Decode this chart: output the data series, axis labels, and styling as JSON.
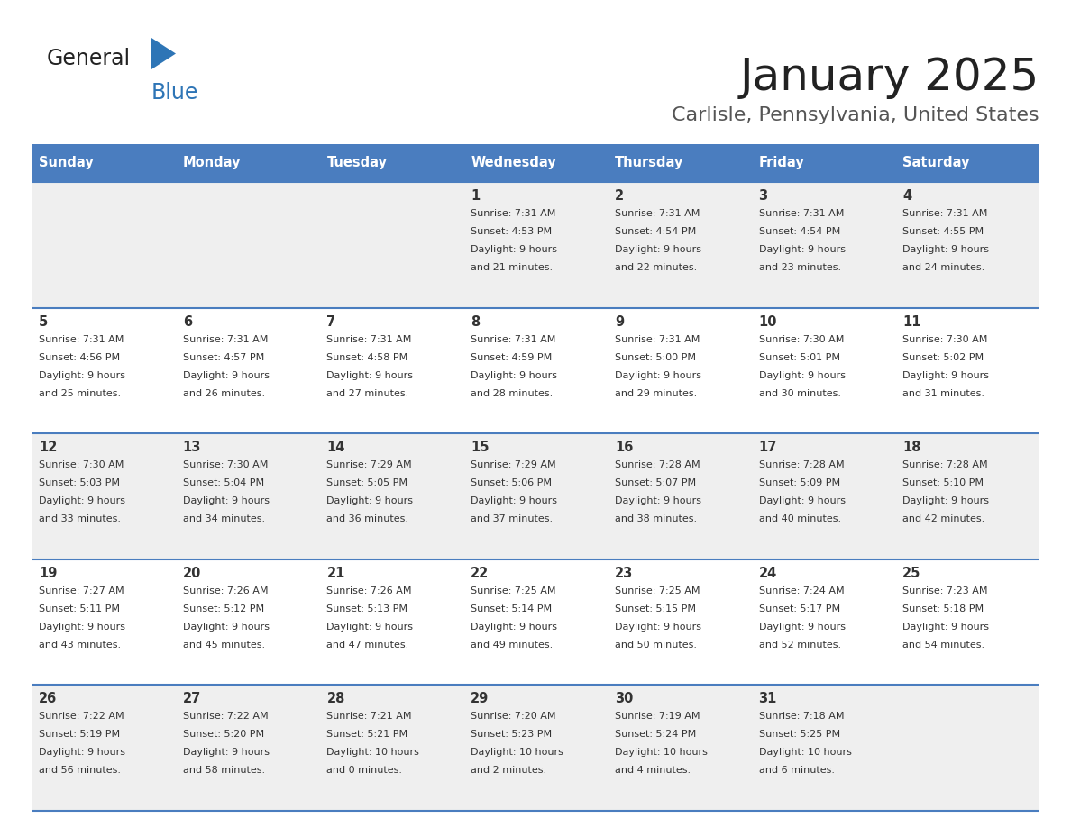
{
  "title": "January 2025",
  "subtitle": "Carlisle, Pennsylvania, United States",
  "header_bg": "#4A7DBF",
  "header_text_color": "#FFFFFF",
  "header_days": [
    "Sunday",
    "Monday",
    "Tuesday",
    "Wednesday",
    "Thursday",
    "Friday",
    "Saturday"
  ],
  "row_bg_even": "#EFEFEF",
  "row_bg_odd": "#FFFFFF",
  "border_color": "#4A7DBF",
  "text_color": "#333333",
  "logo_general_color": "#222222",
  "logo_blue_color": "#2E75B6",
  "logo_triangle_color": "#2E75B6",
  "title_color": "#222222",
  "subtitle_color": "#555555",
  "calendar_data": [
    [
      {
        "day": "",
        "sunrise": "",
        "sunset": "",
        "daylight": ""
      },
      {
        "day": "",
        "sunrise": "",
        "sunset": "",
        "daylight": ""
      },
      {
        "day": "",
        "sunrise": "",
        "sunset": "",
        "daylight": ""
      },
      {
        "day": "1",
        "sunrise": "Sunrise: 7:31 AM",
        "sunset": "Sunset: 4:53 PM",
        "daylight": "Daylight: 9 hours\nand 21 minutes."
      },
      {
        "day": "2",
        "sunrise": "Sunrise: 7:31 AM",
        "sunset": "Sunset: 4:54 PM",
        "daylight": "Daylight: 9 hours\nand 22 minutes."
      },
      {
        "day": "3",
        "sunrise": "Sunrise: 7:31 AM",
        "sunset": "Sunset: 4:54 PM",
        "daylight": "Daylight: 9 hours\nand 23 minutes."
      },
      {
        "day": "4",
        "sunrise": "Sunrise: 7:31 AM",
        "sunset": "Sunset: 4:55 PM",
        "daylight": "Daylight: 9 hours\nand 24 minutes."
      }
    ],
    [
      {
        "day": "5",
        "sunrise": "Sunrise: 7:31 AM",
        "sunset": "Sunset: 4:56 PM",
        "daylight": "Daylight: 9 hours\nand 25 minutes."
      },
      {
        "day": "6",
        "sunrise": "Sunrise: 7:31 AM",
        "sunset": "Sunset: 4:57 PM",
        "daylight": "Daylight: 9 hours\nand 26 minutes."
      },
      {
        "day": "7",
        "sunrise": "Sunrise: 7:31 AM",
        "sunset": "Sunset: 4:58 PM",
        "daylight": "Daylight: 9 hours\nand 27 minutes."
      },
      {
        "day": "8",
        "sunrise": "Sunrise: 7:31 AM",
        "sunset": "Sunset: 4:59 PM",
        "daylight": "Daylight: 9 hours\nand 28 minutes."
      },
      {
        "day": "9",
        "sunrise": "Sunrise: 7:31 AM",
        "sunset": "Sunset: 5:00 PM",
        "daylight": "Daylight: 9 hours\nand 29 minutes."
      },
      {
        "day": "10",
        "sunrise": "Sunrise: 7:30 AM",
        "sunset": "Sunset: 5:01 PM",
        "daylight": "Daylight: 9 hours\nand 30 minutes."
      },
      {
        "day": "11",
        "sunrise": "Sunrise: 7:30 AM",
        "sunset": "Sunset: 5:02 PM",
        "daylight": "Daylight: 9 hours\nand 31 minutes."
      }
    ],
    [
      {
        "day": "12",
        "sunrise": "Sunrise: 7:30 AM",
        "sunset": "Sunset: 5:03 PM",
        "daylight": "Daylight: 9 hours\nand 33 minutes."
      },
      {
        "day": "13",
        "sunrise": "Sunrise: 7:30 AM",
        "sunset": "Sunset: 5:04 PM",
        "daylight": "Daylight: 9 hours\nand 34 minutes."
      },
      {
        "day": "14",
        "sunrise": "Sunrise: 7:29 AM",
        "sunset": "Sunset: 5:05 PM",
        "daylight": "Daylight: 9 hours\nand 36 minutes."
      },
      {
        "day": "15",
        "sunrise": "Sunrise: 7:29 AM",
        "sunset": "Sunset: 5:06 PM",
        "daylight": "Daylight: 9 hours\nand 37 minutes."
      },
      {
        "day": "16",
        "sunrise": "Sunrise: 7:28 AM",
        "sunset": "Sunset: 5:07 PM",
        "daylight": "Daylight: 9 hours\nand 38 minutes."
      },
      {
        "day": "17",
        "sunrise": "Sunrise: 7:28 AM",
        "sunset": "Sunset: 5:09 PM",
        "daylight": "Daylight: 9 hours\nand 40 minutes."
      },
      {
        "day": "18",
        "sunrise": "Sunrise: 7:28 AM",
        "sunset": "Sunset: 5:10 PM",
        "daylight": "Daylight: 9 hours\nand 42 minutes."
      }
    ],
    [
      {
        "day": "19",
        "sunrise": "Sunrise: 7:27 AM",
        "sunset": "Sunset: 5:11 PM",
        "daylight": "Daylight: 9 hours\nand 43 minutes."
      },
      {
        "day": "20",
        "sunrise": "Sunrise: 7:26 AM",
        "sunset": "Sunset: 5:12 PM",
        "daylight": "Daylight: 9 hours\nand 45 minutes."
      },
      {
        "day": "21",
        "sunrise": "Sunrise: 7:26 AM",
        "sunset": "Sunset: 5:13 PM",
        "daylight": "Daylight: 9 hours\nand 47 minutes."
      },
      {
        "day": "22",
        "sunrise": "Sunrise: 7:25 AM",
        "sunset": "Sunset: 5:14 PM",
        "daylight": "Daylight: 9 hours\nand 49 minutes."
      },
      {
        "day": "23",
        "sunrise": "Sunrise: 7:25 AM",
        "sunset": "Sunset: 5:15 PM",
        "daylight": "Daylight: 9 hours\nand 50 minutes."
      },
      {
        "day": "24",
        "sunrise": "Sunrise: 7:24 AM",
        "sunset": "Sunset: 5:17 PM",
        "daylight": "Daylight: 9 hours\nand 52 minutes."
      },
      {
        "day": "25",
        "sunrise": "Sunrise: 7:23 AM",
        "sunset": "Sunset: 5:18 PM",
        "daylight": "Daylight: 9 hours\nand 54 minutes."
      }
    ],
    [
      {
        "day": "26",
        "sunrise": "Sunrise: 7:22 AM",
        "sunset": "Sunset: 5:19 PM",
        "daylight": "Daylight: 9 hours\nand 56 minutes."
      },
      {
        "day": "27",
        "sunrise": "Sunrise: 7:22 AM",
        "sunset": "Sunset: 5:20 PM",
        "daylight": "Daylight: 9 hours\nand 58 minutes."
      },
      {
        "day": "28",
        "sunrise": "Sunrise: 7:21 AM",
        "sunset": "Sunset: 5:21 PM",
        "daylight": "Daylight: 10 hours\nand 0 minutes."
      },
      {
        "day": "29",
        "sunrise": "Sunrise: 7:20 AM",
        "sunset": "Sunset: 5:23 PM",
        "daylight": "Daylight: 10 hours\nand 2 minutes."
      },
      {
        "day": "30",
        "sunrise": "Sunrise: 7:19 AM",
        "sunset": "Sunset: 5:24 PM",
        "daylight": "Daylight: 10 hours\nand 4 minutes."
      },
      {
        "day": "31",
        "sunrise": "Sunrise: 7:18 AM",
        "sunset": "Sunset: 5:25 PM",
        "daylight": "Daylight: 10 hours\nand 6 minutes."
      },
      {
        "day": "",
        "sunrise": "",
        "sunset": "",
        "daylight": ""
      }
    ]
  ]
}
